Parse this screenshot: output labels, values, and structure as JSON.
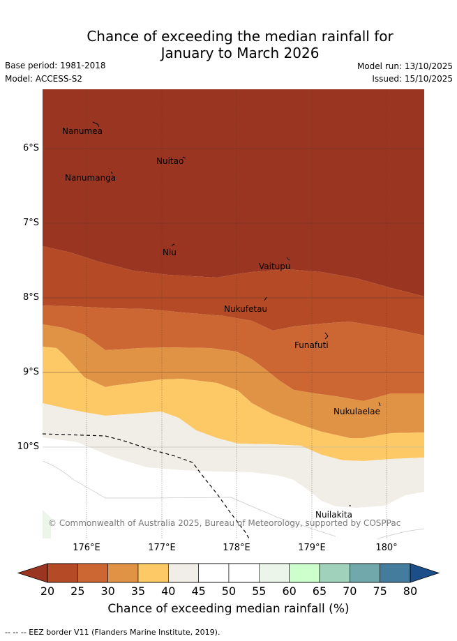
{
  "title_line1": "Chance of exceeding the median rainfall for",
  "title_line2": "January to March 2026",
  "meta": {
    "base_period": "Base period: 1981-2018",
    "model": "Model: ACCESS-S2",
    "model_run": "Model run: 13/10/2025",
    "issued": "Issued: 15/10/2025"
  },
  "map": {
    "lat_labels": [
      "6°S",
      "7°S",
      "8°S",
      "9°S",
      "10°S"
    ],
    "lon_labels": [
      "176°E",
      "177°E",
      "178°E",
      "179°E",
      "180°"
    ],
    "places": [
      "Nanumea",
      "Nuitao",
      "Nanumanga",
      "Niu",
      "Vaitupu",
      "Nukufetau",
      "Funafuti",
      "Nukulaelae",
      "Nuilakita"
    ],
    "copyright": "© Commonwealth of Australia 2025, Bureau of Meteorology, supported by COSPPac"
  },
  "colorbar": {
    "ticks": [
      "20",
      "25",
      "30",
      "35",
      "40",
      "45",
      "50",
      "55",
      "60",
      "65",
      "70",
      "75",
      "80"
    ],
    "colors": [
      "#9a3522",
      "#b44a26",
      "#cc6633",
      "#e09345",
      "#fdc966",
      "#f1ede7",
      "#ffffff",
      "#ffffff",
      "#ebf5e9",
      "#ccffcc",
      "#9fd1bb",
      "#70a8ab",
      "#437c9c",
      "#1c4f8a"
    ],
    "title": "Chance of exceeding median rainfall (%)"
  },
  "footer": "-- -- -- EEZ border V11 (Flanders Marine Institute, 2019)."
}
